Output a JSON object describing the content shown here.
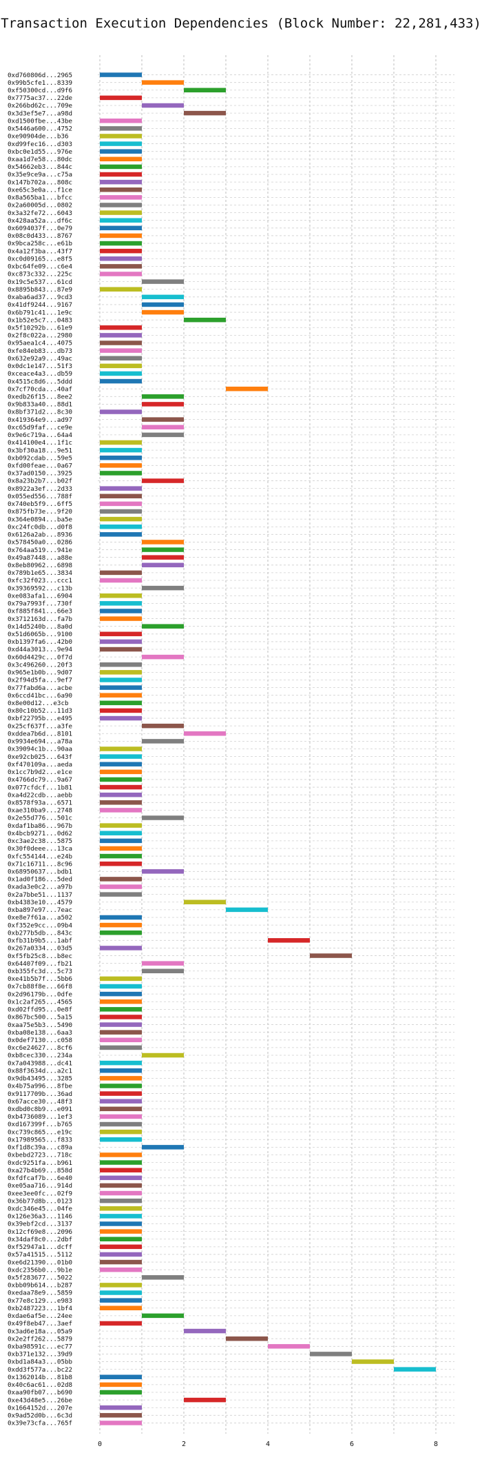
{
  "chart_data": {
    "type": "bar",
    "orientation": "horizontal",
    "title": "Transaction Execution Dependencies (Block Number: 22,281,433)",
    "xlabel": "",
    "ylabel": "",
    "xlim": [
      0,
      8
    ],
    "xticks": [
      0,
      2,
      4,
      6,
      8
    ],
    "grid": true,
    "palette": [
      "#1f77b4",
      "#ff7f0e",
      "#2ca02c",
      "#d62728",
      "#9467bd",
      "#8c564b",
      "#e377c2",
      "#7f7f7f",
      "#bcbd22",
      "#17becf"
    ],
    "labels": [
      "0xd760806d...2965",
      "0x99b5cfe1...8339",
      "0xf50300cd...d9f6",
      "0x7775ac37...22de",
      "0x266bd62c...709e",
      "0x3d3ef5e7...a98d",
      "0xd1500fbe...43be",
      "0x5446a600...4752",
      "0xe90904de...b36",
      "0xd99fec16...d303",
      "0xbc0e1d55...976e",
      "0xaa1d7e58...80dc",
      "0x54662eb3...844c",
      "0x35e9ce9a...c75a",
      "0x147b702a...808c",
      "0xe65c3e0a...f1ce",
      "0x8a565ba1...bfcc",
      "0x2a60005d...0802",
      "0x3a32fe72...6043",
      "0x428aa52a...df6c",
      "0x6094037f...0e79",
      "0x08c0d433...8767",
      "0x9bca258c...e61b",
      "0x4a12f3ba...43f7",
      "0xc0d09165...e8f5",
      "0xbc64fe09...c6e4",
      "0xc873c332...225c",
      "0x19c5e537...61cd",
      "0x8895b843...87e9",
      "0xaba6ad37...9cd3",
      "0x41df9244...9167",
      "0x6b791c41...1e9c",
      "0x1b52e5c7...0483",
      "0x5f10292b...61e9",
      "0x2f8c022a...2980",
      "0x95aea1c4...4075",
      "0xfe84eb83...db73",
      "0x632e92a9...49ac",
      "0x0dc1e147...51f3",
      "0xceace4a3...db59",
      "0x4515c8d6...5ddd",
      "0x7cf70cda...40af",
      "0xedb26f15...8ee2",
      "0x9b833a40...88d1",
      "0x8bf371d2...8c30",
      "0x419364e9...ad97",
      "0xc65d9faf...ce9e",
      "0x9e6c719a...64a4",
      "0x414100e4...1f1c",
      "0x3bf30a18...9e51",
      "0xb092cdab...59e5",
      "0xfd00feae...0a67",
      "0x37ad0150...3925",
      "0x8a23b2b7...b02f",
      "0x8922a3ef...2d33",
      "0x055ed556...788f",
      "0x740eb5f9...6ff5",
      "0x875fb73e...9f20",
      "0x364e0894...ba5e",
      "0xc24fc0db...d0f8",
      "0x6126a2ab...8936",
      "0x578450a0...0286",
      "0x764aa519...941e",
      "0x49a87448...a88e",
      "0x8eb80962...6898",
      "0x789b1e65...3834",
      "0xfc32f023...ccc1",
      "0x39369592...c13b",
      "0xe083afa1...6904",
      "0x79a7993f...730f",
      "0xf885f841...66e3",
      "0x3712163d...fa7b",
      "0x14d5240b...8a0d",
      "0x51d6065b...9100",
      "0xb1397fa6...42b0",
      "0xd44a3013...9e94",
      "0x60d4429c...0f7d",
      "0x3c496260...20f3",
      "0x965e1b0b...9d07",
      "0x2f94d5fa...9ef7",
      "0x77fabd6a...acbe",
      "0x6ccd41bc...6a90",
      "0x8e00d12...e3cb",
      "0x80c10b52...11d3",
      "0xbf22795b...e495",
      "0x25cf637f...a3fe",
      "0xddea7b6d...8101",
      "0x9934e694...a78a",
      "0x39094c1b...90aa",
      "0xe92cb025...643f",
      "0xf470109a...aeda",
      "0x1cc7b9d2...e1ce",
      "0x4766dc79...9a67",
      "0x077cfdcf...1b81",
      "0xa4d22cdb...aebb",
      "0x8578f93a...6571",
      "0xae310ba9...2748",
      "0x2e55d776...501c",
      "0xdaf1ba86...967b",
      "0x4bcb9271...0d62",
      "0xc3ae2c38...5875",
      "0x30f0deee...13ca",
      "0xfc554144...e24b",
      "0x71c16711...8c96",
      "0x68950637...bdb1",
      "0x1ad0f186...5ded",
      "0xada3e0c2...a97b",
      "0x2a7bbe51...1137",
      "0xb4383e10...4579",
      "0xba897e97...7eac",
      "0xe8e7f61a...a502",
      "0xf352e9cc...09b4",
      "0xb277b5db...843c",
      "0xfb31b9b5...1abf",
      "0x267a0334...03d5",
      "0xf5fb25c8...b8ec",
      "0x64407f09...fb21",
      "0xb355fc3d...5c73",
      "0xe41b5b7f...5bb6",
      "0x7cb88f8e...66f8",
      "0x2d96179b...0dfe",
      "0x1c2af265...4565",
      "0xd02ffd95...0e8f",
      "0x867bc500...5a15",
      "0xaa75e5b3...5490",
      "0xba08e138...6aa3",
      "0x0def7130...c058",
      "0xc6e24627...8cf6",
      "0xb8cec330...234a",
      "0x7a043988...dc41",
      "0x88f3634d...a2c1",
      "0x9db43495...3285",
      "0x4b75a996...8fbe",
      "0x9117709b...36ad",
      "0x67acce30...48f3",
      "0xdbd0c8b9...e091",
      "0xb4736089...1ef3",
      "0xd167399f...b765",
      "0xc739c865...e19c",
      "0x17989565...f833",
      "0xf1d8c39a...c89a",
      "0xbebd2723...718c",
      "0xdc9251fa...b961",
      "0xa27b4b69...858d",
      "0xfdfcaf7b...6e40",
      "0xe05aa716...914d",
      "0xee3ee0fc...02f9",
      "0x36b77d8b...0123",
      "0xdc346e45...04fe",
      "0x126e36a3...1146",
      "0x39ebf2cd...3137",
      "0x12cf69e8...2096",
      "0x34daf8c0...2dbf",
      "0xf52947a1...dcff",
      "0x57a41515...5112",
      "0xe6d21390...01b0",
      "0xdc2356b0...9b1e",
      "0x5f283677...5022",
      "0xbb09b614...b287",
      "0xedaa78e9...5859",
      "0x77e8c129...e983",
      "0xb2487223...1bf4",
      "0xdae6af5e...24ee",
      "0x49f8eb47...3aef",
      "0x3ad6e18a...05a9",
      "0x2e2ff262...5879",
      "0xba98591c...ec77",
      "0xb371e132...39d9",
      "0xbd1a84a3...05bb",
      "0xdd3f577a...bc22",
      "0x1362014b...81b8",
      "0x40c6ac61...02d8",
      "0xaa90fb07...b690",
      "0xe43d48e5...26be",
      "0x1664152d...207e",
      "0x9ad52d0b...6c3d",
      "0x39e73cfa...765f"
    ],
    "starts": [
      0,
      1,
      2,
      0,
      1,
      2,
      0,
      0,
      0,
      0,
      0,
      0,
      0,
      0,
      0,
      0,
      0,
      0,
      0,
      0,
      0,
      0,
      0,
      0,
      0,
      0,
      0,
      1,
      0,
      1,
      1,
      1,
      2,
      0,
      0,
      0,
      0,
      0,
      0,
      0,
      0,
      3,
      1,
      1,
      0,
      1,
      1,
      1,
      0,
      0,
      0,
      0,
      0,
      1,
      0,
      0,
      0,
      0,
      0,
      0,
      0,
      1,
      1,
      1,
      1,
      0,
      0,
      1,
      0,
      0,
      0,
      0,
      1,
      0,
      0,
      0,
      1,
      0,
      0,
      0,
      0,
      0,
      0,
      0,
      0,
      1,
      2,
      1,
      0,
      0,
      0,
      0,
      0,
      0,
      0,
      0,
      0,
      1,
      0,
      0,
      0,
      0,
      0,
      0,
      1,
      0,
      0,
      0,
      2,
      3,
      0,
      0,
      0,
      4,
      0,
      5,
      1,
      1,
      0,
      0,
      0,
      0,
      0,
      0,
      0,
      0,
      0,
      0,
      1,
      0,
      0,
      0,
      0,
      0,
      0,
      0,
      0,
      0,
      0,
      0,
      1,
      0,
      0,
      0,
      0,
      0,
      0,
      0,
      0,
      0,
      0,
      0,
      0,
      0,
      0,
      0,
      0,
      1,
      0,
      0,
      0,
      0,
      1,
      0,
      2,
      3,
      4,
      5,
      6,
      7,
      0,
      0,
      0,
      2,
      0,
      0,
      0
    ],
    "durations": [
      1,
      1,
      1,
      1,
      1,
      1,
      1,
      1,
      1,
      1,
      1,
      1,
      1,
      1,
      1,
      1,
      1,
      1,
      1,
      1,
      1,
      1,
      1,
      1,
      1,
      1,
      1,
      1,
      1,
      1,
      1,
      1,
      1,
      1,
      1,
      1,
      1,
      1,
      1,
      1,
      1,
      1,
      1,
      1,
      1,
      1,
      1,
      1,
      1,
      1,
      1,
      1,
      1,
      1,
      1,
      1,
      1,
      1,
      1,
      1,
      1,
      1,
      1,
      1,
      1,
      1,
      1,
      1,
      1,
      1,
      1,
      1,
      1,
      1,
      1,
      1,
      1,
      1,
      1,
      1,
      1,
      1,
      1,
      1,
      1,
      1,
      1,
      1,
      1,
      1,
      1,
      1,
      1,
      1,
      1,
      1,
      1,
      1,
      1,
      1,
      1,
      1,
      1,
      1,
      1,
      1,
      1,
      1,
      1,
      1,
      1,
      1,
      1,
      1,
      1,
      1,
      1,
      1,
      1,
      1,
      1,
      1,
      1,
      1,
      1,
      1,
      1,
      1,
      1,
      1,
      1,
      1,
      1,
      1,
      1,
      1,
      1,
      1,
      1,
      1,
      1,
      1,
      1,
      1,
      1,
      1,
      1,
      1,
      1,
      1,
      1,
      1,
      1,
      1,
      1,
      1,
      1,
      1,
      1,
      1,
      1,
      1,
      1,
      1,
      1,
      1,
      1,
      1,
      1,
      1,
      1,
      1,
      1,
      1,
      1,
      1,
      1
    ]
  }
}
